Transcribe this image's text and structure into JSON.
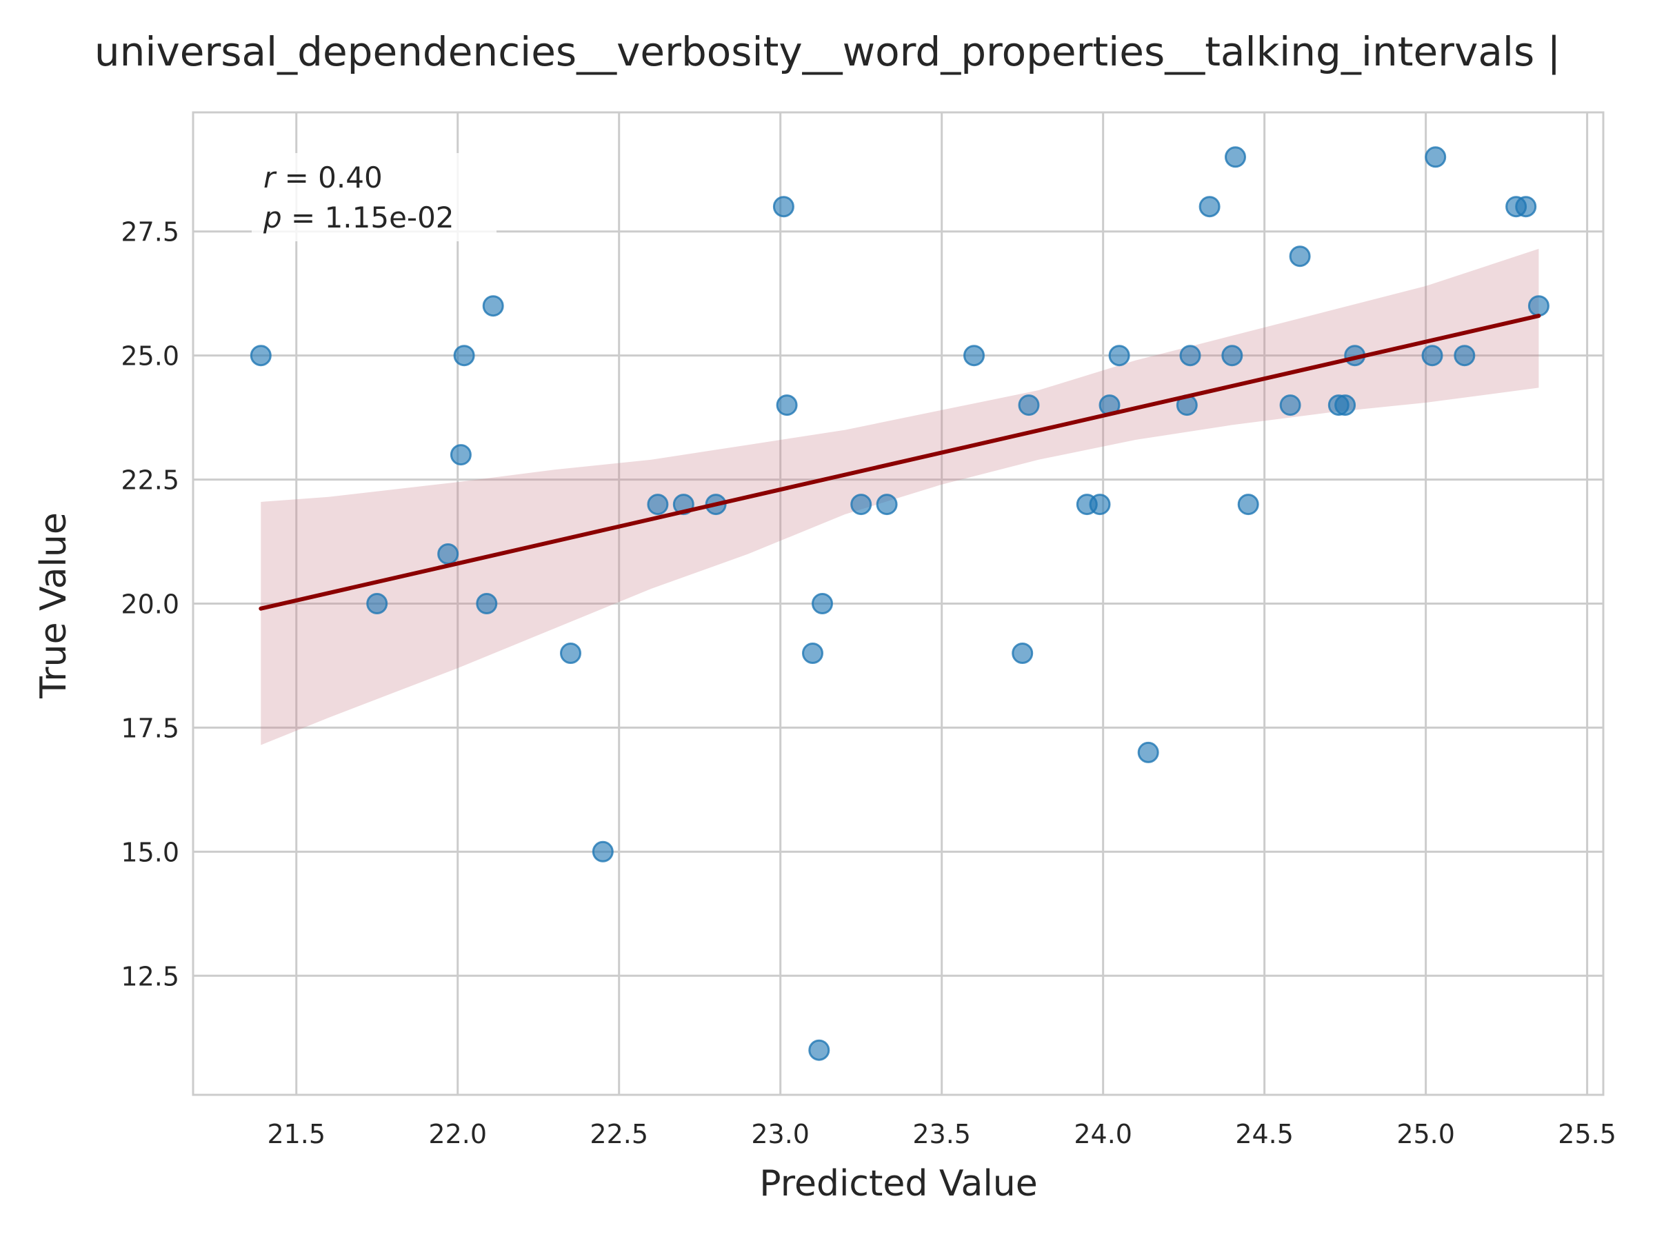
{
  "chart_data": {
    "type": "scatter",
    "title": "universal_dependencies__verbosity__word_properties__talking_intervals |",
    "xlabel": "Predicted Value",
    "ylabel": "True Value",
    "xlim": [
      21.18,
      25.55
    ],
    "ylim": [
      10.1,
      29.9
    ],
    "xticks": [
      "21.5",
      "22.0",
      "22.5",
      "23.0",
      "23.5",
      "24.0",
      "24.5",
      "25.0",
      "25.5"
    ],
    "yticks": [
      "12.5",
      "15.0",
      "17.5",
      "20.0",
      "22.5",
      "25.0",
      "27.5"
    ],
    "grid": true,
    "annotation": {
      "r_symbol": "r",
      "r_text": " = 0.40",
      "p_symbol": "p",
      "p_text": " = 1.15e-02"
    },
    "regression": {
      "x": [
        21.39,
        25.35
      ],
      "y": [
        19.9,
        25.8
      ]
    },
    "ci_band": {
      "x": [
        21.39,
        21.6,
        21.8,
        22.0,
        22.3,
        22.6,
        22.9,
        23.2,
        23.5,
        23.8,
        24.1,
        24.4,
        24.7,
        25.0,
        25.35
      ],
      "upper": [
        22.05,
        22.15,
        22.3,
        22.45,
        22.7,
        22.9,
        23.2,
        23.5,
        23.9,
        24.3,
        24.9,
        25.4,
        25.9,
        26.4,
        27.15
      ],
      "lower": [
        17.15,
        17.7,
        18.2,
        18.7,
        19.5,
        20.3,
        21.0,
        21.8,
        22.4,
        22.9,
        23.3,
        23.6,
        23.85,
        24.05,
        24.35
      ]
    },
    "points": [
      {
        "x": 21.39,
        "y": 25
      },
      {
        "x": 21.75,
        "y": 20
      },
      {
        "x": 21.97,
        "y": 21
      },
      {
        "x": 22.01,
        "y": 23
      },
      {
        "x": 22.02,
        "y": 25
      },
      {
        "x": 22.09,
        "y": 20
      },
      {
        "x": 22.11,
        "y": 26
      },
      {
        "x": 22.35,
        "y": 19
      },
      {
        "x": 22.45,
        "y": 15
      },
      {
        "x": 22.62,
        "y": 22
      },
      {
        "x": 22.7,
        "y": 22
      },
      {
        "x": 22.8,
        "y": 22
      },
      {
        "x": 23.01,
        "y": 28
      },
      {
        "x": 23.02,
        "y": 24
      },
      {
        "x": 23.1,
        "y": 19
      },
      {
        "x": 23.12,
        "y": 11
      },
      {
        "x": 23.13,
        "y": 20
      },
      {
        "x": 23.25,
        "y": 22
      },
      {
        "x": 23.33,
        "y": 22
      },
      {
        "x": 23.6,
        "y": 25
      },
      {
        "x": 23.75,
        "y": 19
      },
      {
        "x": 23.77,
        "y": 24
      },
      {
        "x": 23.95,
        "y": 22
      },
      {
        "x": 23.99,
        "y": 22
      },
      {
        "x": 24.02,
        "y": 24
      },
      {
        "x": 24.05,
        "y": 25
      },
      {
        "x": 24.14,
        "y": 17
      },
      {
        "x": 24.26,
        "y": 24
      },
      {
        "x": 24.27,
        "y": 25
      },
      {
        "x": 24.33,
        "y": 28
      },
      {
        "x": 24.4,
        "y": 25
      },
      {
        "x": 24.41,
        "y": 29
      },
      {
        "x": 24.45,
        "y": 22
      },
      {
        "x": 24.58,
        "y": 24
      },
      {
        "x": 24.61,
        "y": 27
      },
      {
        "x": 24.73,
        "y": 24
      },
      {
        "x": 24.75,
        "y": 24
      },
      {
        "x": 24.78,
        "y": 25
      },
      {
        "x": 25.02,
        "y": 25
      },
      {
        "x": 25.03,
        "y": 29
      },
      {
        "x": 25.12,
        "y": 25
      },
      {
        "x": 25.28,
        "y": 28
      },
      {
        "x": 25.31,
        "y": 28
      },
      {
        "x": 25.35,
        "y": 26
      }
    ],
    "colors": {
      "points": "#1f77b4",
      "line": "#8b0000",
      "band": "#c9848d",
      "grid": "#cccccc",
      "spine": "#cccccc"
    }
  }
}
